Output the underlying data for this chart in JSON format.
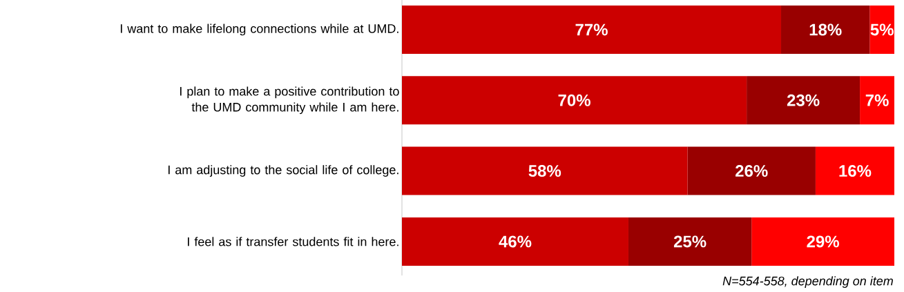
{
  "chart_data": {
    "type": "bar",
    "orientation": "horizontal",
    "stacked": true,
    "tick_labels": "y",
    "categories": [
      "I want to make lifelong connections while at UMD.",
      "I plan to make a positive contribution to the UMD community while I am here.",
      "I am adjusting to the social life of college.",
      "I feel as if transfer students fit in here."
    ],
    "series": [
      {
        "color": "#cc0000",
        "values": [
          77,
          70,
          58,
          46
        ],
        "value_labels": [
          "77%",
          "70%",
          "58%",
          "46%"
        ]
      },
      {
        "color": "#990000",
        "values": [
          18,
          23,
          26,
          25
        ],
        "value_labels": [
          "18%",
          "23%",
          "26%",
          "25%"
        ]
      },
      {
        "color": "#ff0000",
        "values": [
          5,
          7,
          16,
          29
        ],
        "value_labels": [
          "5%",
          "7%",
          "16%",
          "29%"
        ]
      }
    ],
    "annotations": [
      "N=554-558, depending on item"
    ]
  }
}
